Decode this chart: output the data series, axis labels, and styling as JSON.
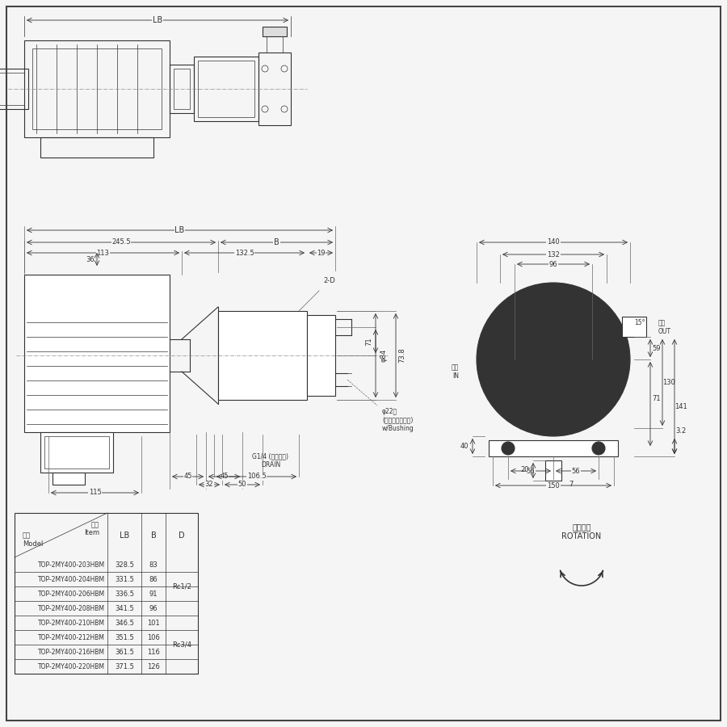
{
  "bg_color": "#f5f5f5",
  "line_color": "#333333",
  "table": {
    "rows": [
      [
        "TOP-2MY400-203HBM",
        "328.5",
        "83",
        ""
      ],
      [
        "TOP-2MY400-204HBM",
        "331.5",
        "86",
        ""
      ],
      [
        "TOP-2MY400-206HBM",
        "336.5",
        "91",
        "Rc1/2"
      ],
      [
        "TOP-2MY400-208HBM",
        "341.5",
        "96",
        ""
      ],
      [
        "TOP-2MY400-210HBM",
        "346.5",
        "101",
        ""
      ],
      [
        "TOP-2MY400-212HBM",
        "351.5",
        "106",
        "Rc3/4"
      ],
      [
        "TOP-2MY400-216HBM",
        "361.5",
        "116",
        ""
      ],
      [
        "TOP-2MY400-220HBM",
        "371.5",
        "126",
        ""
      ]
    ]
  },
  "rotation_label_jp": "回転方向",
  "rotation_label_en": "ROTATION",
  "phi84": "φ84",
  "phi22": "φ22穴\n(ゴムブッシュ付)\nw/Bushing",
  "drain": "G1/4 (ドレン穴)\nDRAIN",
  "out_jp": "吐出\nOUT",
  "in_jp": "吸入\nIN"
}
